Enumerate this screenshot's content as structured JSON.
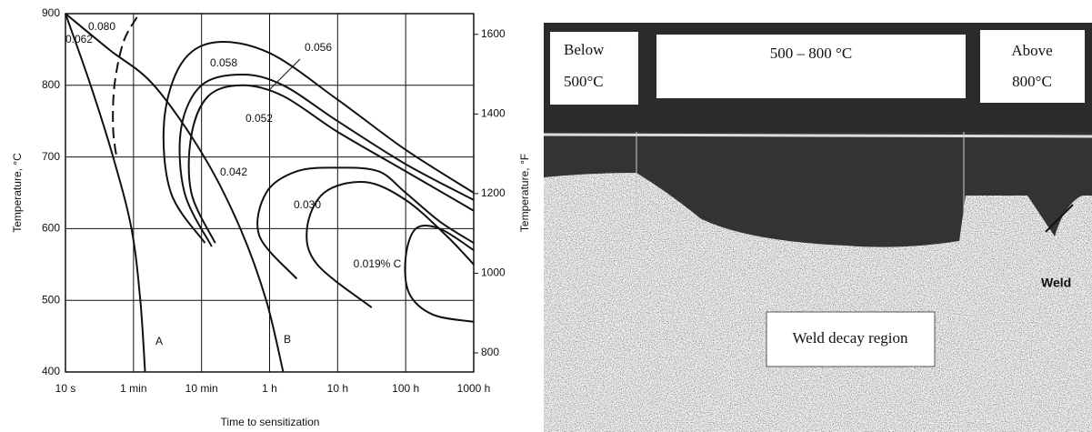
{
  "chart_data": {
    "type": "line",
    "xlabel": "Time to sensitization",
    "ylabel": "Temperature, °C",
    "y2label": "Temperature, °F",
    "xlim": [
      0,
      6
    ],
    "xticks": [
      {
        "value": 0,
        "label": "10 s"
      },
      {
        "value": 1,
        "label": "1 min"
      },
      {
        "value": 2,
        "label": "10 min"
      },
      {
        "value": 3,
        "label": "1 h"
      },
      {
        "value": 4,
        "label": "10 h"
      },
      {
        "value": 5,
        "label": "100 h"
      },
      {
        "value": 6,
        "label": "1000 h"
      }
    ],
    "ylim": [
      400,
      900
    ],
    "yticks": [
      400,
      500,
      600,
      700,
      800,
      900
    ],
    "y2lim": [
      752,
      1652
    ],
    "y2ticks": [
      800,
      1000,
      1200,
      1400,
      1600
    ],
    "grid": true,
    "annotations": [
      "0.080"
    ],
    "series": [
      {
        "name": "A",
        "color": "#111111",
        "x": [
          0,
          0.37,
          0.7,
          0.97,
          1.1,
          1.17
        ],
        "values": [
          900,
          800,
          700,
          600,
          500,
          400
        ]
      },
      {
        "name": "B",
        "color": "#111111",
        "x": [
          0,
          0.64,
          1.3,
          2.04,
          2.57,
          2.95,
          3.2
        ],
        "values": [
          900,
          850,
          800,
          700,
          600,
          500,
          400
        ]
      },
      {
        "name": "0.062",
        "color": "#111111",
        "dash": true,
        "x": [
          1.05,
          0.85,
          0.72,
          0.7,
          0.75
        ],
        "values": [
          895,
          860,
          800,
          740,
          700
        ]
      },
      {
        "name": "0.058",
        "color": "#111111",
        "x": [
          2.05,
          1.55,
          1.45,
          1.7,
          2.2,
          3.0,
          4.0,
          5.0,
          6.0
        ],
        "values": [
          580,
          650,
          750,
          830,
          860,
          845,
          780,
          710,
          650
        ]
      },
      {
        "name": "0.056",
        "color": "#111111",
        "x": [
          2.15,
          1.75,
          1.7,
          2.0,
          2.6,
          3.2,
          4.0,
          5.0,
          6.0
        ],
        "values": [
          575,
          650,
          740,
          800,
          815,
          800,
          750,
          690,
          640
        ]
      },
      {
        "name": "0.052",
        "color": "#111111",
        "x": [
          2.2,
          1.85,
          1.85,
          2.1,
          2.6,
          3.2,
          4.0,
          5.0,
          6.0
        ],
        "values": [
          580,
          650,
          730,
          785,
          800,
          785,
          735,
          680,
          625
        ]
      },
      {
        "name": "0.042",
        "color": "#111111",
        "x": [
          3.4,
          2.85,
          2.95,
          3.4,
          4.0,
          4.6,
          5.0,
          5.5,
          6.0
        ],
        "values": [
          530,
          590,
          650,
          680,
          685,
          680,
          650,
          610,
          580
        ]
      },
      {
        "name": "0.030",
        "color": "#111111",
        "x": [
          4.5,
          3.7,
          3.55,
          3.8,
          4.4,
          5.0,
          5.6,
          6.0
        ],
        "values": [
          490,
          550,
          600,
          650,
          665,
          640,
          590,
          550
        ]
      },
      {
        "name": "0.019% C",
        "color": "#111111",
        "x": [
          6.0,
          5.4,
          5.05,
          5.0,
          5.15,
          5.5,
          6.0
        ],
        "values": [
          470,
          480,
          510,
          560,
          600,
          600,
          570
        ]
      }
    ]
  },
  "photo": {
    "below": [
      "Below",
      "500°C"
    ],
    "middle": "500 – 800 °C",
    "above": [
      "Above",
      "800°C"
    ],
    "region": "Weld decay region",
    "weld": "Weld"
  }
}
